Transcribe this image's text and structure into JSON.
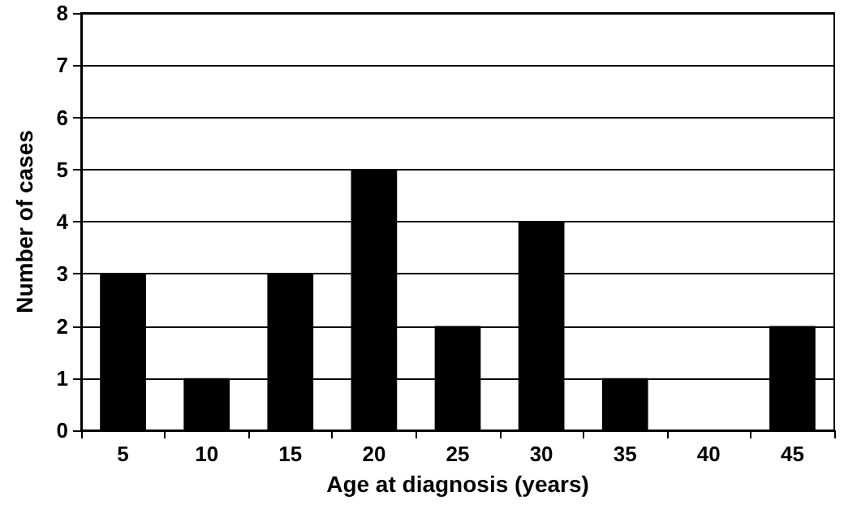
{
  "chart_data": {
    "type": "bar",
    "xlabel": "Age at diagnosis (years)",
    "ylabel": "Number of cases",
    "categories": [
      "5",
      "10",
      "15",
      "20",
      "25",
      "30",
      "35",
      "40",
      "45"
    ],
    "values": [
      3,
      1,
      3,
      5,
      2,
      4,
      1,
      0,
      2
    ],
    "color": "#000000",
    "ylim": [
      0,
      8
    ],
    "yticks": [
      0,
      1,
      2,
      3,
      4,
      5,
      6,
      7,
      8
    ],
    "grid": "y"
  }
}
